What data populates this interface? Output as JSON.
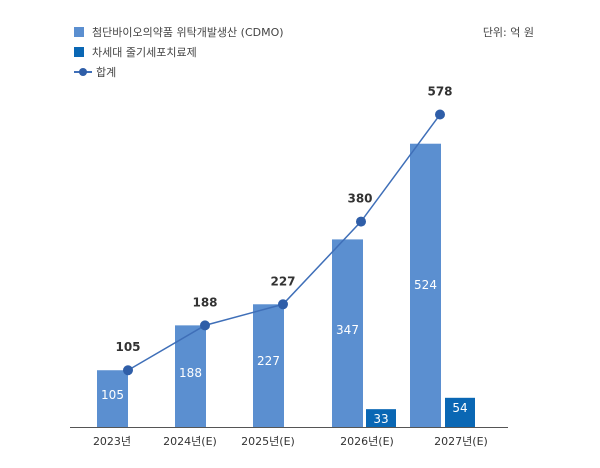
{
  "legend": {
    "cdmo": "첨단바이오의약품 위탁개발생산 (CDMO)",
    "stem": "차세대 줄기세포치료제",
    "total": "합계"
  },
  "unit": "단위: 억 원",
  "colors": {
    "cdmo": "#5b8fd0",
    "stem": "#0a67b4",
    "line": "#3f6fb8",
    "marker": "#2f5ea8"
  },
  "chart_data": {
    "type": "bar",
    "categories": [
      "2023년",
      "2024년(E)",
      "2025년(E)",
      "2026년(E)",
      "2027년(E)"
    ],
    "series": [
      {
        "name": "첨단바이오의약품 위탁개발생산 (CDMO)",
        "values": [
          105,
          188,
          227,
          347,
          524
        ]
      },
      {
        "name": "차세대 줄기세포치료제",
        "values": [
          null,
          null,
          null,
          33,
          54
        ]
      },
      {
        "name": "합계",
        "type": "line",
        "values": [
          105,
          188,
          227,
          380,
          578
        ]
      }
    ],
    "title": "",
    "xlabel": "",
    "ylabel": "",
    "unit": "억 원",
    "ylim": [
      0,
      640
    ]
  }
}
